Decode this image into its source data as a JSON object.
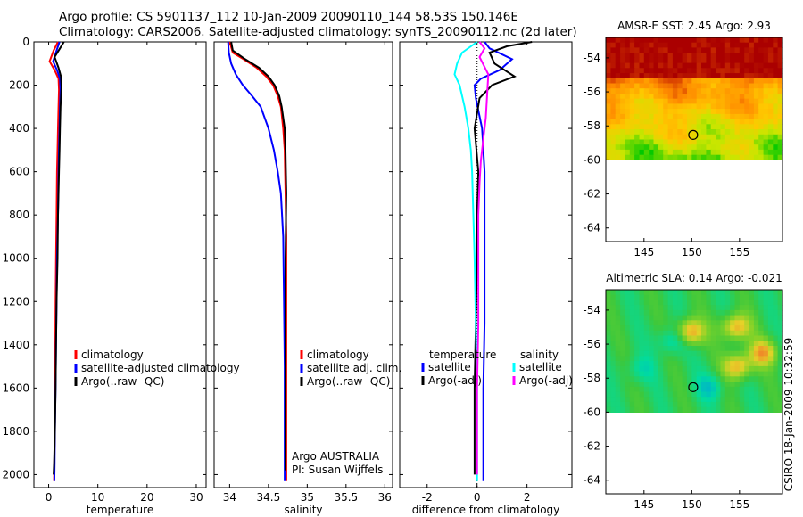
{
  "header": {
    "line1": "Argo profile: CS 5901137_112 10-Jan-2009 20090110_144 58.53S 150.146E",
    "line2": "Climatology: CARS2006. Satellite-adjusted climatology: synTS_20090112.nc (2d later)"
  },
  "side_text": "CSIRO 18-Jan-2009 10:32:59",
  "chart_data": [
    {
      "type": "line",
      "name": "temperature-profile",
      "xlabel": "temperature",
      "ylabel": "",
      "xlim": [
        -3,
        32
      ],
      "ylim": [
        2060,
        0
      ],
      "xticks": [
        0,
        10,
        20,
        30
      ],
      "yticks": [
        0,
        200,
        400,
        600,
        800,
        1000,
        1200,
        1400,
        1600,
        1800,
        2000
      ],
      "legend": "lower-left",
      "series": [
        {
          "name": "climatology",
          "color": "#ff0000",
          "x": [
            1.9,
            1.0,
            0.2,
            1.2,
            2.0,
            2.1,
            2.0,
            1.9,
            1.8,
            1.7,
            1.6,
            1.5,
            1.4,
            1.35,
            1.3,
            1.25,
            1.2,
            1.15,
            1.1
          ],
          "y": [
            0,
            40,
            90,
            130,
            170,
            220,
            300,
            400,
            500,
            600,
            800,
            1000,
            1200,
            1400,
            1600,
            1750,
            1850,
            1950,
            2030
          ]
        },
        {
          "name": "satellite-adjusted climatology",
          "color": "#0000ff",
          "x": [
            2.2,
            1.6,
            0.9,
            1.7,
            2.3,
            2.4,
            2.3,
            2.2,
            2.1,
            2.0,
            1.9,
            1.7,
            1.6,
            1.5,
            1.4,
            1.3,
            1.25,
            1.2,
            1.15
          ],
          "y": [
            0,
            40,
            90,
            130,
            170,
            220,
            300,
            400,
            500,
            600,
            800,
            1000,
            1200,
            1400,
            1600,
            1750,
            1850,
            1950,
            2030
          ]
        },
        {
          "name": "Argo(..raw -QC)",
          "color": "#000000",
          "x": [
            3.1,
            2.3,
            1.2,
            2.0,
            2.5,
            2.6,
            2.4,
            2.3,
            2.2,
            2.1,
            1.9,
            1.8,
            1.6,
            1.5,
            1.4,
            1.3,
            1.2,
            1.1,
            1.0
          ],
          "y": [
            0,
            30,
            70,
            120,
            160,
            210,
            300,
            400,
            500,
            600,
            800,
            1000,
            1200,
            1400,
            1600,
            1750,
            1850,
            1950,
            2000
          ]
        }
      ]
    },
    {
      "type": "line",
      "name": "salinity-profile",
      "xlabel": "salinity",
      "xlim": [
        33.8,
        36.1
      ],
      "ylim": [
        2060,
        0
      ],
      "xticks": [
        34,
        34.5,
        35,
        35.5,
        36
      ],
      "legend": "lower-right",
      "annotation": [
        "Argo AUSTRALIA",
        "PI: Susan Wijffels"
      ],
      "series": [
        {
          "name": "climatology",
          "color": "#ff0000",
          "x": [
            34.0,
            34.04,
            34.18,
            34.35,
            34.47,
            34.56,
            34.62,
            34.66,
            34.69,
            34.71,
            34.72,
            34.73,
            34.73,
            34.73,
            34.73,
            34.73
          ],
          "y": [
            0,
            50,
            80,
            120,
            160,
            200,
            250,
            300,
            400,
            500,
            700,
            900,
            1200,
            1500,
            1800,
            2030
          ]
        },
        {
          "name": "satellite adj. clim.",
          "color": "#0000ff",
          "x": [
            33.98,
            33.99,
            34.02,
            34.08,
            34.17,
            34.29,
            34.4,
            34.5,
            34.57,
            34.62,
            34.66,
            34.69,
            34.7,
            34.71,
            34.71,
            34.71
          ],
          "y": [
            0,
            50,
            100,
            150,
            200,
            250,
            300,
            400,
            500,
            600,
            700,
            900,
            1200,
            1500,
            1800,
            2030
          ]
        },
        {
          "name": "Argo(..raw -QC)",
          "color": "#000000",
          "x": [
            34.02,
            34.04,
            34.2,
            34.38,
            34.5,
            34.58,
            34.64,
            34.67,
            34.71,
            34.72,
            34.73,
            34.72,
            34.72,
            34.72,
            34.72
          ],
          "y": [
            0,
            40,
            80,
            120,
            160,
            200,
            250,
            300,
            400,
            500,
            700,
            1000,
            1400,
            1800,
            1980
          ]
        }
      ]
    },
    {
      "type": "line",
      "name": "difference-profile",
      "xlabel": "difference from climatology",
      "xlim": [
        -3.1,
        3.8
      ],
      "ylim": [
        2060,
        0
      ],
      "xticks": [
        -2,
        0,
        2
      ],
      "legend": "lower-center",
      "legend_headers": [
        "temperature",
        "salinity"
      ],
      "series": [
        {
          "name": "satellite",
          "group": "temperature",
          "color": "#0000ff",
          "x": [
            0.3,
            0.5,
            1.4,
            0.9,
            0.15,
            -0.1,
            -0.05,
            0.2,
            0.3,
            0.3,
            0.3,
            0.3,
            0.25,
            0.25,
            0.25
          ],
          "y": [
            0,
            30,
            80,
            130,
            170,
            200,
            260,
            400,
            600,
            800,
            1000,
            1300,
            1600,
            1900,
            2030
          ]
        },
        {
          "name": "Argo(-adj)",
          "group": "temperature",
          "color": "#000000",
          "x": [
            2.2,
            1.2,
            0.5,
            0.7,
            1.5,
            0.6,
            0.1,
            -0.1,
            0.05,
            0.0,
            0.0,
            -0.05,
            -0.1,
            -0.1,
            -0.1
          ],
          "y": [
            0,
            20,
            50,
            100,
            160,
            200,
            260,
            400,
            600,
            800,
            1000,
            1300,
            1600,
            1900,
            2000
          ]
        },
        {
          "name": "satellite",
          "group": "salinity",
          "color": "#00ffff",
          "x": [
            0.0,
            -0.6,
            -0.8,
            -0.9,
            -0.7,
            -0.5,
            -0.35,
            -0.25,
            -0.2,
            -0.15,
            -0.1,
            -0.05,
            0.0,
            0.0,
            0.0
          ],
          "y": [
            0,
            50,
            100,
            150,
            200,
            300,
            400,
            500,
            600,
            800,
            1000,
            1300,
            1600,
            1900,
            2030
          ]
        },
        {
          "name": "Argo(-adj)",
          "group": "salinity",
          "color": "#ff00ff",
          "x": [
            0.1,
            0.3,
            0.1,
            0.45,
            0.4,
            0.35,
            0.25,
            0.15,
            0.1,
            0.05,
            0.05,
            0.05,
            0.0,
            0.0,
            0.0
          ],
          "y": [
            0,
            30,
            70,
            150,
            250,
            350,
            450,
            550,
            650,
            800,
            1000,
            1300,
            1600,
            1900,
            2000
          ]
        }
      ]
    },
    {
      "type": "heatmap",
      "name": "sst-map",
      "title": "AMSR-E SST: 2.45 Argo: 2.93",
      "xlim": [
        141,
        159.5
      ],
      "ylim": [
        -64.8,
        -52.8
      ],
      "xticks": [
        145,
        150,
        155
      ],
      "yticks": [
        -54,
        -56,
        -58,
        -60,
        -62,
        -64
      ],
      "data_extent_south": -60,
      "marker": {
        "lon": 150.146,
        "lat": -58.53
      }
    },
    {
      "type": "heatmap",
      "name": "sla-map",
      "title": "Altimetric SLA: 0.14 Argo: -0.021",
      "xlim": [
        141,
        159.5
      ],
      "ylim": [
        -64.8,
        -52.8
      ],
      "xticks": [
        145,
        150,
        155
      ],
      "yticks": [
        -54,
        -56,
        -58,
        -60,
        -62,
        -64
      ],
      "data_extent_south": -60,
      "marker": {
        "lon": 150.146,
        "lat": -58.53
      }
    }
  ]
}
